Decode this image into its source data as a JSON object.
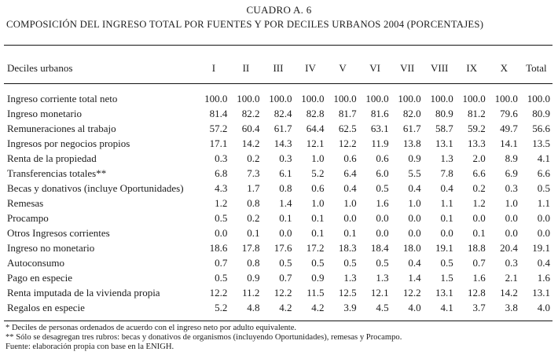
{
  "title": {
    "line1": "CUADRO A. 6",
    "line2": "COMPOSICIÓN DEL INGRESO TOTAL POR FUENTES Y POR DECILES URBANOS 2004 (PORCENTAJES)"
  },
  "table": {
    "row_header": "Deciles urbanos",
    "columns": [
      "I",
      "II",
      "III",
      "IV",
      "V",
      "VI",
      "VII",
      "VIII",
      "IX",
      "X",
      "Total"
    ],
    "rows": [
      {
        "label": "Ingreso corriente total neto",
        "values": [
          "100.0",
          "100.0",
          "100.0",
          "100.0",
          "100.0",
          "100.0",
          "100.0",
          "100.0",
          "100.0",
          "100.0",
          "100.0"
        ]
      },
      {
        "label": "Ingreso monetario",
        "values": [
          "81.4",
          "82.2",
          "82.4",
          "82.8",
          "81.7",
          "81.6",
          "82.0",
          "80.9",
          "81.2",
          "79.6",
          "80.9"
        ]
      },
      {
        "label": "Remuneraciones al trabajo",
        "values": [
          "57.2",
          "60.4",
          "61.7",
          "64.4",
          "62.5",
          "63.1",
          "61.7",
          "58.7",
          "59.2",
          "49.7",
          "56.6"
        ]
      },
      {
        "label": "Ingresos por negocios propios",
        "values": [
          "17.1",
          "14.2",
          "14.3",
          "12.1",
          "12.2",
          "11.9",
          "13.8",
          "13.1",
          "13.3",
          "14.1",
          "13.5"
        ]
      },
      {
        "label": "Renta de la propiedad",
        "values": [
          "0.3",
          "0.2",
          "0.3",
          "1.0",
          "0.6",
          "0.6",
          "0.9",
          "1.3",
          "2.0",
          "8.9",
          "4.1"
        ]
      },
      {
        "label": "Transferencias totales**",
        "values": [
          "6.8",
          "7.3",
          "6.1",
          "5.2",
          "6.4",
          "6.0",
          "5.5",
          "7.8",
          "6.6",
          "6.9",
          "6.6"
        ]
      },
      {
        "label": "Becas y donativos (incluye Oportunidades)",
        "values": [
          "4.3",
          "1.7",
          "0.8",
          "0.6",
          "0.4",
          "0.5",
          "0.4",
          "0.4",
          "0.2",
          "0.3",
          "0.5"
        ]
      },
      {
        "label": "Remesas",
        "values": [
          "1.2",
          "0.8",
          "1.4",
          "1.0",
          "1.0",
          "1.6",
          "1.0",
          "1.1",
          "1.2",
          "1.0",
          "1.1"
        ]
      },
      {
        "label": "Procampo",
        "values": [
          "0.5",
          "0.2",
          "0.1",
          "0.1",
          "0.0",
          "0.0",
          "0.0",
          "0.1",
          "0.0",
          "0.0",
          "0.0"
        ]
      },
      {
        "label": "Otros Ingresos corrientes",
        "values": [
          "0.0",
          "0.1",
          "0.0",
          "0.1",
          "0.1",
          "0.0",
          "0.0",
          "0.0",
          "0.1",
          "0.0",
          "0.0"
        ]
      },
      {
        "label": "Ingreso no monetario",
        "values": [
          "18.6",
          "17.8",
          "17.6",
          "17.2",
          "18.3",
          "18.4",
          "18.0",
          "19.1",
          "18.8",
          "20.4",
          "19.1"
        ]
      },
      {
        "label": "Autoconsumo",
        "values": [
          "0.7",
          "0.8",
          "0.5",
          "0.5",
          "0.5",
          "0.5",
          "0.4",
          "0.5",
          "0.7",
          "0.3",
          "0.4"
        ]
      },
      {
        "label": "Pago en especie",
        "values": [
          "0.5",
          "0.9",
          "0.7",
          "0.9",
          "1.3",
          "1.3",
          "1.4",
          "1.5",
          "1.6",
          "2.1",
          "1.6"
        ]
      },
      {
        "label": "Renta imputada de la vivienda propia",
        "values": [
          "12.2",
          "11.2",
          "12.2",
          "11.5",
          "12.5",
          "12.1",
          "12.2",
          "13.1",
          "12.8",
          "14.2",
          "13.1"
        ]
      },
      {
        "label": "Regalos en especie",
        "values": [
          "5.2",
          "4.8",
          "4.2",
          "4.2",
          "3.9",
          "4.5",
          "4.0",
          "4.1",
          "3.7",
          "3.8",
          "4.0"
        ]
      }
    ]
  },
  "footnotes": [
    "* Deciles de personas ordenados de acuerdo con el ingreso neto por adulto equivalente.",
    "** Sólo se desagregan tres rubros: becas y donativos de organismos (incluyendo Oportunidades), remesas y Procampo.",
    "Fuente: elaboración propia con base en la ENIGH."
  ]
}
